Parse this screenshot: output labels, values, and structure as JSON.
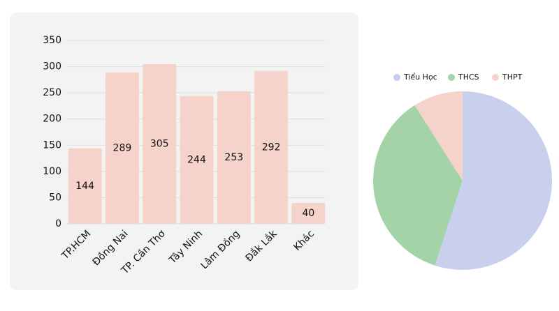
{
  "chart_data": [
    {
      "type": "bar",
      "categories": [
        "TP.HCM",
        "Đồng Nai",
        "TP. Cần Thơ",
        "Tây Ninh",
        "Lâm Đồng",
        "Đắk Lắk",
        "Khác"
      ],
      "values": [
        144,
        289,
        305,
        244,
        253,
        292,
        40
      ],
      "color": "#f5d3cb",
      "ylim": [
        0,
        350
      ],
      "yticks": [
        0,
        50,
        100,
        150,
        200,
        250,
        300,
        350
      ],
      "grid": true
    },
    {
      "type": "pie",
      "categories": [
        "Tiểu Học",
        "THCS",
        "THPT"
      ],
      "values": [
        55,
        36,
        9
      ],
      "colors": [
        "#c8d0ee",
        "#a3d3a6",
        "#f5d3cb"
      ],
      "legend": "top"
    }
  ]
}
